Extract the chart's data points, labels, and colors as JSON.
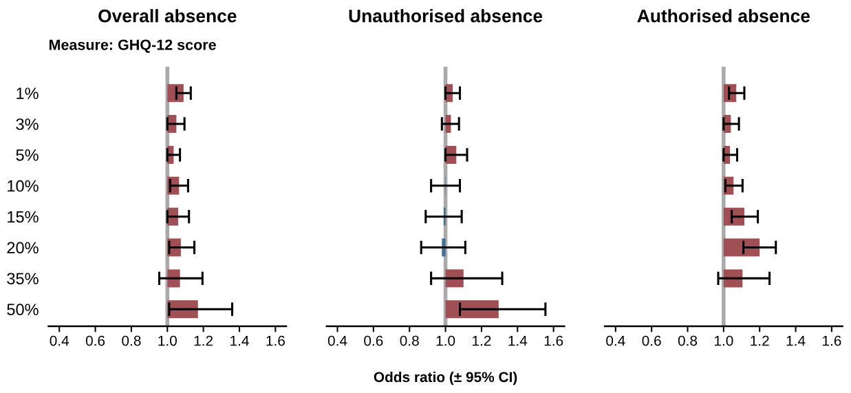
{
  "chart_data": [
    {
      "type": "bar",
      "orientation": "horizontal",
      "title": "Overall absence",
      "subtitle": "Measure: GHQ-12 score",
      "categories": [
        "1%",
        "3%",
        "5%",
        "10%",
        "15%",
        "20%",
        "35%",
        "50%"
      ],
      "base": [
        1,
        1,
        1,
        1,
        1,
        1,
        1,
        1
      ],
      "values": [
        0.09,
        0.05,
        0.035,
        0.065,
        0.06,
        0.075,
        0.07,
        0.17
      ],
      "colors": [
        "#a05055",
        "#a05055",
        "#a05055",
        "#a05055",
        "#a05055",
        "#a05055",
        "#a05055",
        "#a05055"
      ],
      "errors": [
        [
          1.05,
          1.13
        ],
        [
          1.0,
          1.095
        ],
        [
          1.0,
          1.07
        ],
        [
          1.015,
          1.115
        ],
        [
          1.0,
          1.12
        ],
        [
          1.01,
          1.15
        ],
        [
          0.955,
          1.195
        ],
        [
          1.01,
          1.36
        ]
      ],
      "xlim": [
        0.34,
        1.66
      ],
      "xticks": [
        {
          "value": 0.4,
          "label": "0.4"
        },
        {
          "value": 0.6,
          "label": "0.6"
        },
        {
          "value": 0.8,
          "label": "0.8"
        },
        {
          "value": 1.0,
          "label": "1.0"
        },
        {
          "value": 1.2,
          "label": "1.2"
        },
        {
          "value": 1.4,
          "label": "1.4"
        },
        {
          "value": 1.6,
          "label": "1.6"
        }
      ],
      "ref_lines": [
        {
          "axis": "x",
          "value": 1.0,
          "color": "#aaaaaa"
        }
      ],
      "grid": false,
      "legend": false
    },
    {
      "type": "bar",
      "orientation": "horizontal",
      "title": "Unauthorised absence",
      "xlabel": "Odds ratio (± 95% CI)",
      "base": [
        1,
        1,
        1,
        1,
        1,
        1,
        1,
        1
      ],
      "values": [
        0.04,
        0.03,
        0.06,
        -0.002,
        -0.01,
        -0.02,
        0.1,
        0.295
      ],
      "categories": [
        null,
        null,
        null,
        null,
        null,
        null,
        null,
        null
      ],
      "colors": [
        "#a05055",
        "#a05055",
        "#a05055",
        "#3f6f95",
        "#3f6f95",
        "#3f6f95",
        "#a05055",
        "#a05055"
      ],
      "errors": [
        [
          1.0,
          1.08
        ],
        [
          0.98,
          1.075
        ],
        [
          1.0,
          1.12
        ],
        [
          0.92,
          1.08
        ],
        [
          0.89,
          1.09
        ],
        [
          0.865,
          1.11
        ],
        [
          0.92,
          1.315
        ],
        [
          1.08,
          1.555
        ]
      ],
      "xlim": [
        0.34,
        1.66
      ],
      "xticks": [
        {
          "value": 0.4,
          "label": "0.4"
        },
        {
          "value": 0.6,
          "label": "0.6"
        },
        {
          "value": 0.8,
          "label": "0.8"
        },
        {
          "value": 1.0,
          "label": "1.0"
        },
        {
          "value": 1.2,
          "label": "1.2"
        },
        {
          "value": 1.4,
          "label": "1.4"
        },
        {
          "value": 1.6,
          "label": "1.6"
        }
      ],
      "ref_lines": [
        {
          "axis": "x",
          "value": 1.0,
          "color": "#aaaaaa"
        }
      ],
      "tick_labels": "x",
      "grid": false,
      "legend": false
    },
    {
      "type": "bar",
      "orientation": "horizontal",
      "title": "Authorised absence",
      "base": [
        1,
        1,
        1,
        1,
        1,
        1,
        1,
        null
      ],
      "categories": [
        null,
        null,
        null,
        null,
        null,
        null,
        null,
        null
      ],
      "values": [
        0.07,
        0.04,
        0.035,
        0.055,
        0.115,
        0.2,
        0.105,
        null
      ],
      "colors": [
        "#a05055",
        "#a05055",
        "#a05055",
        "#a05055",
        "#a05055",
        "#a05055",
        "#a05055",
        "#a05055"
      ],
      "errors": [
        [
          1.03,
          1.115
        ],
        [
          1.0,
          1.085
        ],
        [
          1.0,
          1.075
        ],
        [
          1.01,
          1.105
        ],
        [
          1.045,
          1.19
        ],
        [
          1.11,
          1.29
        ],
        [
          0.97,
          1.255
        ],
        null
      ],
      "xlim": [
        0.34,
        1.66
      ],
      "xticks": [
        {
          "value": 0.4,
          "label": "0.4"
        },
        {
          "value": 0.6,
          "label": "0.6"
        },
        {
          "value": 0.8,
          "label": "0.8"
        },
        {
          "value": 1.0,
          "label": "1.0"
        },
        {
          "value": 1.2,
          "label": "1.2"
        },
        {
          "value": 1.4,
          "label": "1.4"
        },
        {
          "value": 1.6,
          "label": "1.6"
        }
      ],
      "ref_lines": [
        {
          "axis": "x",
          "value": 1.0,
          "color": "#aaaaaa"
        }
      ],
      "tick_labels": "x",
      "grid": false,
      "legend": false
    }
  ]
}
